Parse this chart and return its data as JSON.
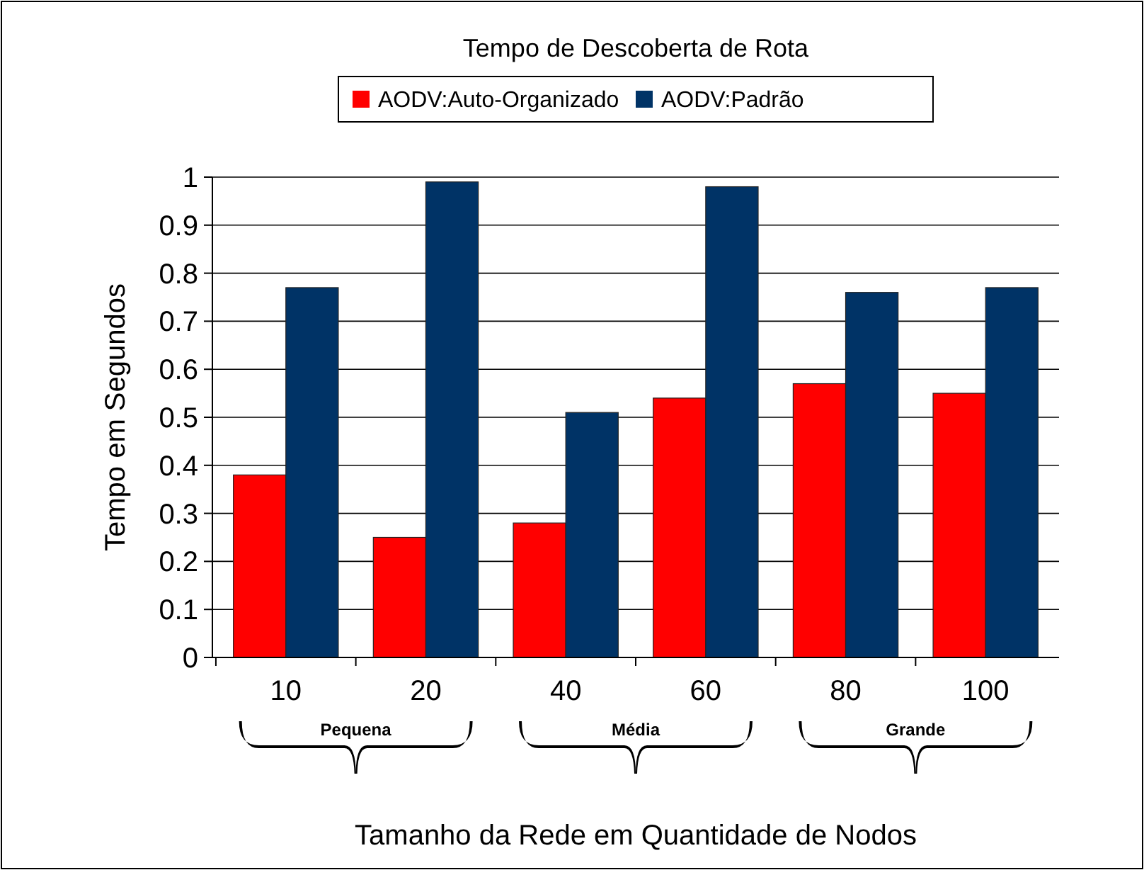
{
  "chart_data": {
    "type": "bar",
    "title": "Tempo de Descoberta de Rota",
    "xlabel": "Tamanho da Rede em Quantidade de Nodos",
    "ylabel": "Tempo em Segundos",
    "categories": [
      "10",
      "20",
      "40",
      "60",
      "80",
      "100"
    ],
    "series": [
      {
        "name": "AODV:Auto-Organizado",
        "color": "#ff0000",
        "values": [
          0.38,
          0.25,
          0.28,
          0.54,
          0.57,
          0.55
        ]
      },
      {
        "name": "AODV:Padrão",
        "color": "#003366",
        "values": [
          0.77,
          0.99,
          0.51,
          0.98,
          0.76,
          0.77
        ]
      }
    ],
    "ylim": [
      0,
      1
    ],
    "yticks": [
      0,
      0.1,
      0.2,
      0.3,
      0.4,
      0.5,
      0.6,
      0.7,
      0.8,
      0.9,
      1
    ],
    "grid": "y",
    "legend": "top",
    "annotations": [
      "Pequena",
      "Média",
      "Grande"
    ]
  }
}
